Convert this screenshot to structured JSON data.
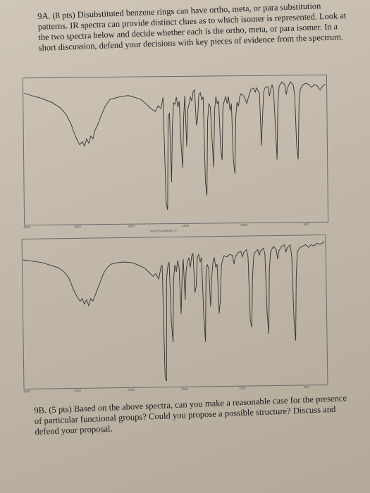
{
  "question_9a": {
    "label": "9A.",
    "text": "(8 pts) Disubstituted benzene rings can have ortho, meta, or para substitution patterns. IR spectra can provide distinct clues as to which isomer is represented. Look at the two spectra below and decide whether each is the ortho, meta, or para isomer. In a short discussion, defend your decisions with key pieces of evidence from the spectrum."
  },
  "spectrum_1": {
    "tick_labels": [
      "4000",
      "3000",
      "2000",
      "1500",
      "1000",
      "500"
    ],
    "axis_title": "WAVENUMBER(-1)"
  },
  "spectrum_2": {
    "tick_labels": [
      "4000",
      "3000",
      "2000",
      "1500",
      "1000",
      "500"
    ]
  },
  "question_9b": {
    "label": "9B.",
    "text": "(5 pts) Based on the above spectra, can you make a reasonable case for the presence of particular functional groups? Could you propose a possible structure? Discuss and defend your proposal."
  }
}
